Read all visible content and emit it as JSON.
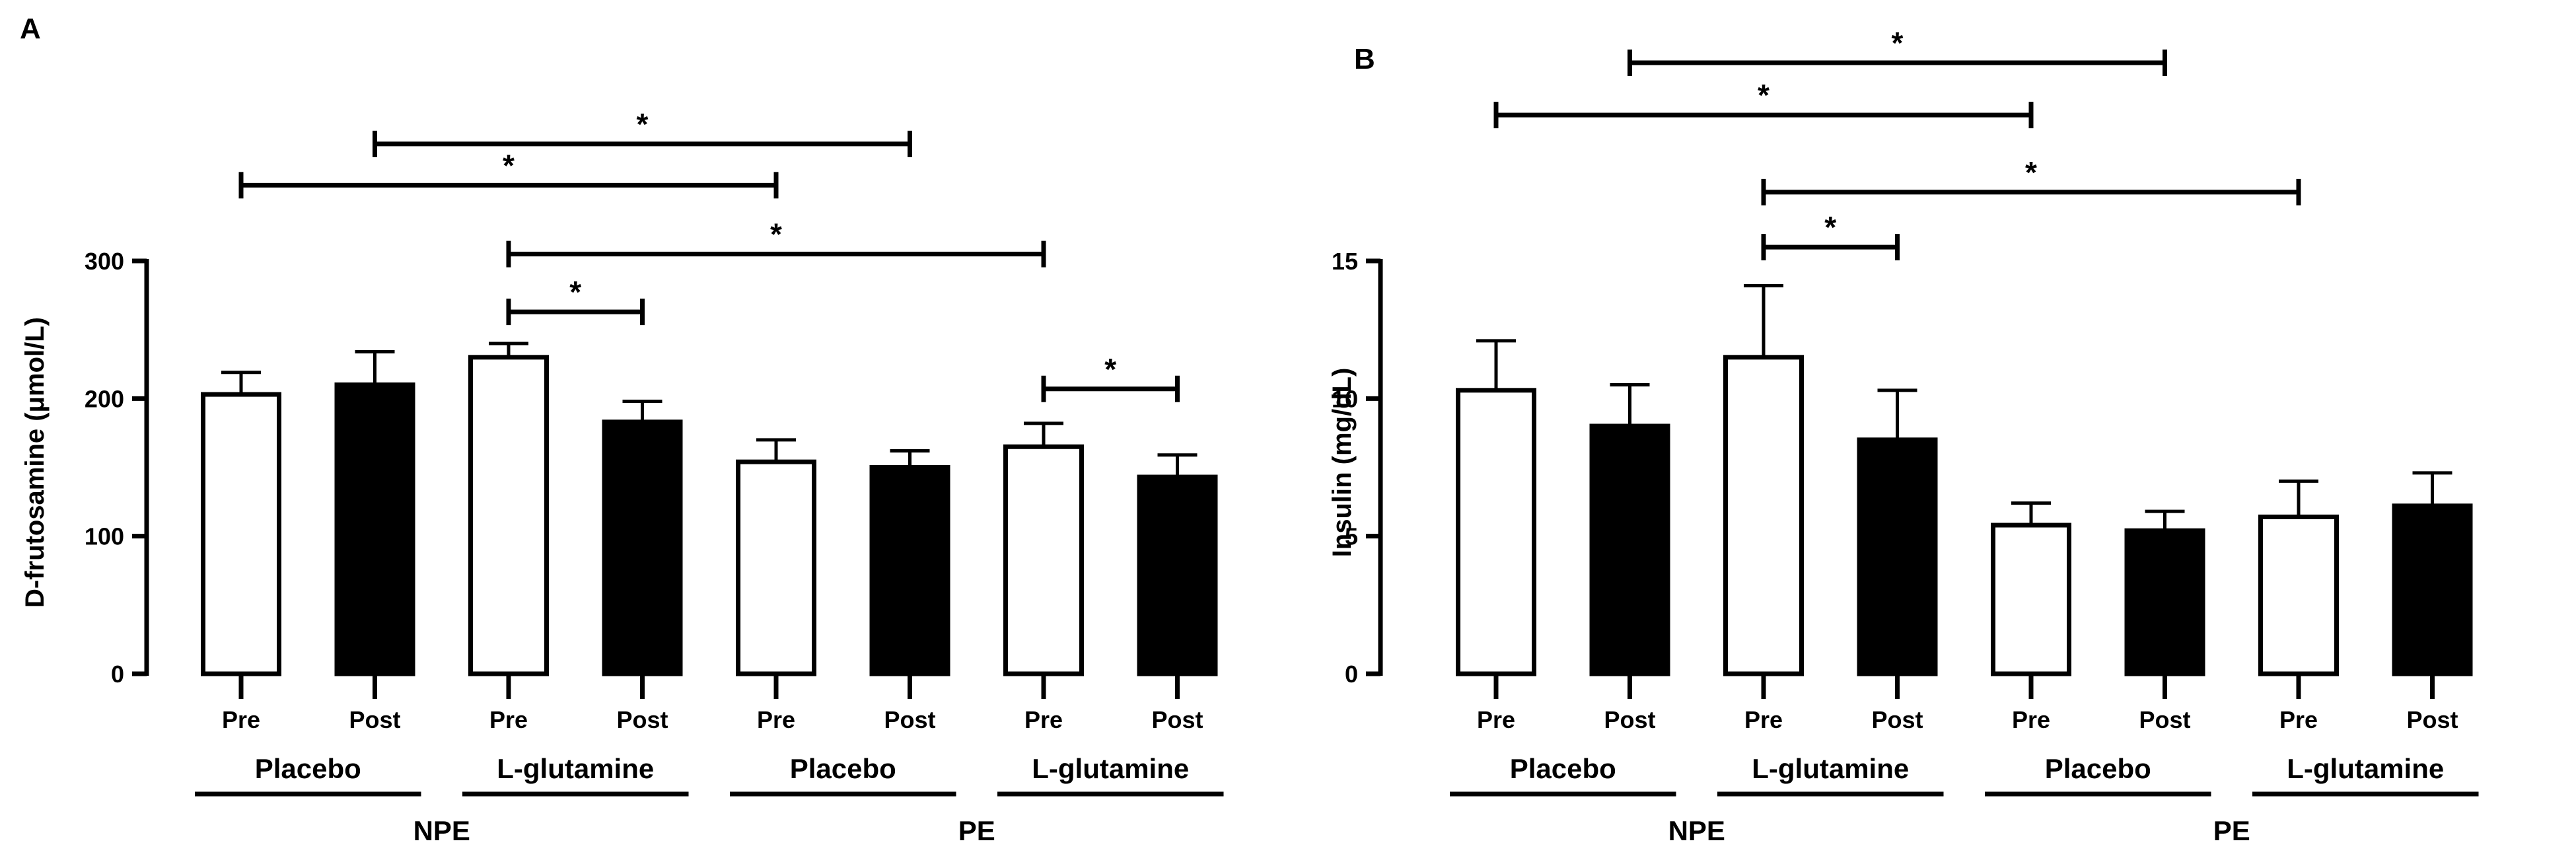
{
  "chart_data": [
    {
      "panel_label": "A",
      "type": "bar",
      "ylabel": "D-frutosamine (μmol/L)",
      "ylim": [
        0,
        300
      ],
      "yticks": [
        "0",
        "100",
        "200",
        "300"
      ],
      "ytick_values": [
        0,
        100,
        200,
        300
      ],
      "categories": [
        "Pre",
        "Post",
        "Pre",
        "Post",
        "Pre",
        "Post",
        "Pre",
        "Post"
      ],
      "values": [
        203,
        210,
        230,
        183,
        154,
        150,
        165,
        143
      ],
      "errors": [
        16,
        24,
        10,
        15,
        16,
        12,
        17,
        16
      ],
      "fills": [
        "white",
        "black",
        "white",
        "black",
        "white",
        "black",
        "white",
        "black"
      ],
      "treatments": [
        {
          "label": "Placebo",
          "from": 0,
          "to": 1
        },
        {
          "label": "L-glutamine",
          "from": 2,
          "to": 3
        },
        {
          "label": "Placebo",
          "from": 4,
          "to": 5
        },
        {
          "label": "L-glutamine",
          "from": 6,
          "to": 7
        }
      ],
      "groups": [
        {
          "label": "NPE",
          "from": 0,
          "to": 3
        },
        {
          "label": "PE",
          "from": 4,
          "to": 7
        }
      ],
      "significance": [
        {
          "from": 1,
          "to": 5,
          "level": 385,
          "label": "*"
        },
        {
          "from": 0,
          "to": 4,
          "level": 355,
          "label": "*"
        },
        {
          "from": 2,
          "to": 6,
          "level": 305,
          "label": "*"
        },
        {
          "from": 2,
          "to": 3,
          "level": 263,
          "label": "*"
        },
        {
          "from": 6,
          "to": 7,
          "level": 207,
          "label": "*"
        }
      ]
    },
    {
      "panel_label": "B",
      "type": "bar",
      "ylabel": "Insulin (mg/dL)",
      "ylim": [
        0,
        15
      ],
      "yticks": [
        "0",
        "5",
        "10",
        "15"
      ],
      "ytick_values": [
        0,
        5,
        10,
        15
      ],
      "categories": [
        "Pre",
        "Post",
        "Pre",
        "Post",
        "Pre",
        "Post",
        "Pre",
        "Post"
      ],
      "values": [
        10.3,
        9.0,
        11.5,
        8.5,
        5.4,
        5.2,
        5.7,
        6.1
      ],
      "errors": [
        1.8,
        1.5,
        2.6,
        1.8,
        0.8,
        0.7,
        1.3,
        1.2
      ],
      "fills": [
        "white",
        "black",
        "white",
        "black",
        "white",
        "black",
        "white",
        "black"
      ],
      "treatments": [
        {
          "label": "Placebo",
          "from": 0,
          "to": 1
        },
        {
          "label": "L-glutamine",
          "from": 2,
          "to": 3
        },
        {
          "label": "Placebo",
          "from": 4,
          "to": 5
        },
        {
          "label": "L-glutamine",
          "from": 6,
          "to": 7
        }
      ],
      "groups": [
        {
          "label": "NPE",
          "from": 0,
          "to": 3
        },
        {
          "label": "PE",
          "from": 4,
          "to": 7
        }
      ],
      "significance": [
        {
          "from": 1,
          "to": 5,
          "level": 22.2,
          "label": "*"
        },
        {
          "from": 0,
          "to": 4,
          "level": 20.3,
          "label": "*"
        },
        {
          "from": 2,
          "to": 6,
          "level": 17.5,
          "label": "*"
        },
        {
          "from": 2,
          "to": 3,
          "level": 15.5,
          "label": "*"
        }
      ]
    }
  ]
}
